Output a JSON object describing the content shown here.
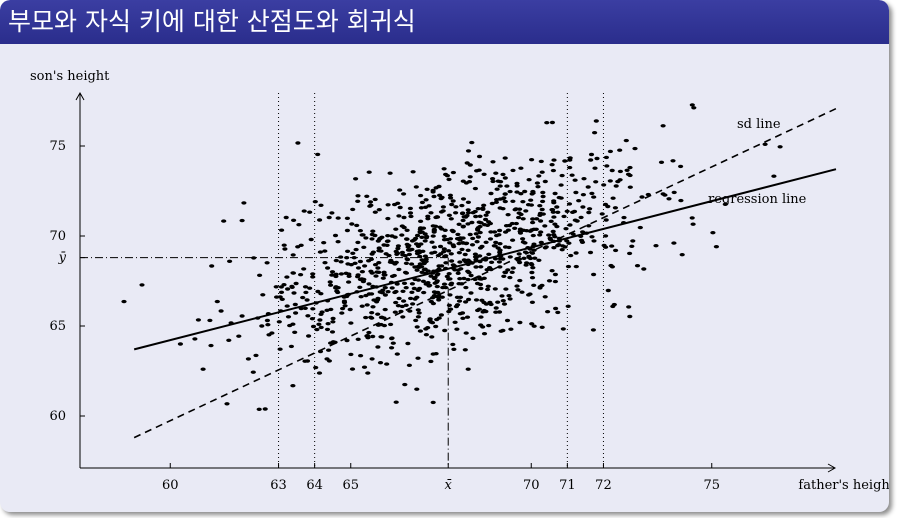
{
  "slide": {
    "title": "부모와 자식 키에 대한 산점도와 회귀식"
  },
  "chart_data": {
    "type": "scatter",
    "title": "",
    "xlabel": "father's height",
    "ylabel": "son's height",
    "xlim": [
      57.5,
      78.5
    ],
    "ylim": [
      57,
      79
    ],
    "xticks": [
      {
        "value": 60,
        "label": "60"
      },
      {
        "value": 63,
        "label": "63"
      },
      {
        "value": 64,
        "label": "64"
      },
      {
        "value": 65,
        "label": "65"
      },
      {
        "value": 67.7,
        "label": "x̄"
      },
      {
        "value": 70,
        "label": "70"
      },
      {
        "value": 71,
        "label": "71"
      },
      {
        "value": 72,
        "label": "72"
      },
      {
        "value": 75,
        "label": "75"
      }
    ],
    "yticks": [
      {
        "value": 60,
        "label": "60"
      },
      {
        "value": 65,
        "label": "65"
      },
      {
        "value": 68.8,
        "label": "ȳ"
      },
      {
        "value": 70,
        "label": "70"
      },
      {
        "value": 75,
        "label": "75"
      }
    ],
    "mean_x": 67.7,
    "mean_y": 68.8,
    "vertical_guides": [
      63,
      64,
      71,
      72
    ],
    "lines": [
      {
        "name": "regression line",
        "label": "regression line",
        "from": [
          59,
          63.7
        ],
        "to": [
          79,
          74
        ]
      },
      {
        "name": "sd line",
        "label": "sd line",
        "from": [
          59,
          58.8
        ],
        "to": [
          79,
          77.6
        ]
      }
    ],
    "point_cloud": {
      "n": 1078,
      "mean_x": 67.7,
      "mean_y": 68.8,
      "sd_x": 2.7,
      "sd_y": 2.8,
      "correlation": 0.5
    },
    "grid": false,
    "legend": "none"
  }
}
